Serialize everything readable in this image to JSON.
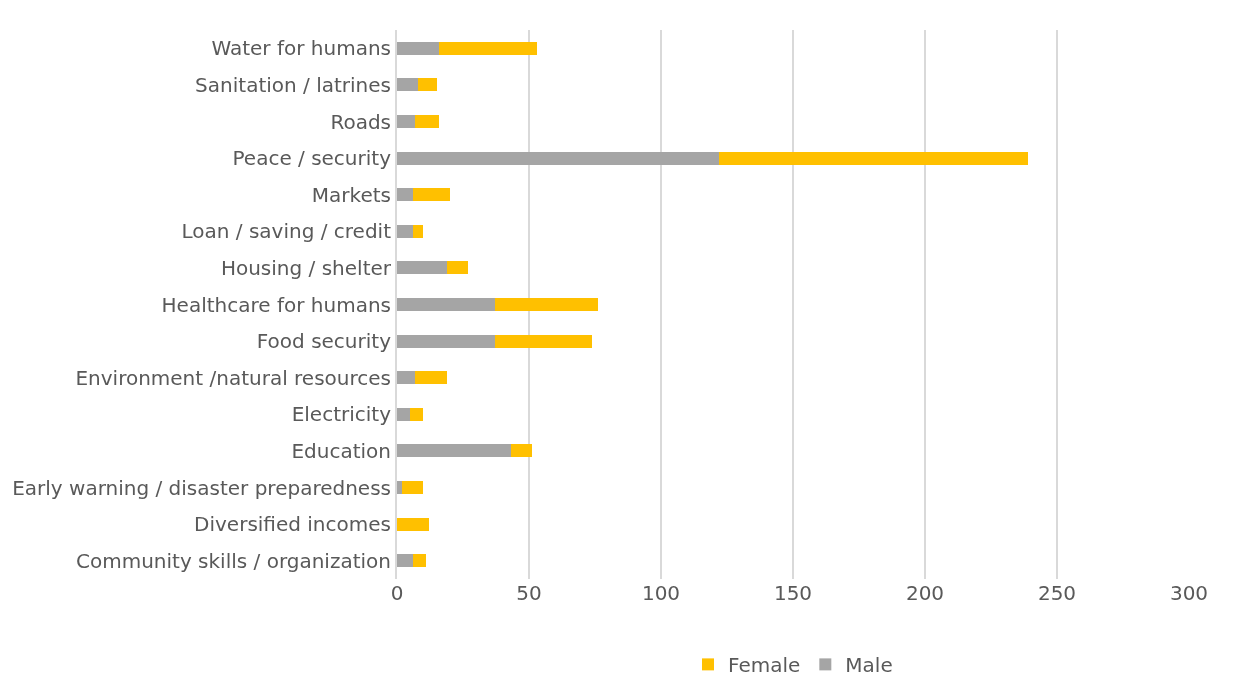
{
  "chart_data": {
    "type": "bar",
    "orientation": "horizontal",
    "stacked": true,
    "categories": [
      "Water for humans",
      "Sanitation / latrines",
      "Roads",
      "Peace / security",
      "Markets",
      "Loan / saving / credit",
      "Housing / shelter",
      "Healthcare for humans",
      "Food security",
      "Environment /natural resources",
      "Electricity",
      "Education",
      "Early warning / disaster preparedness",
      "Diversified incomes",
      "Community skills / organization"
    ],
    "series": [
      {
        "name": "Male",
        "color": "#a5a5a5",
        "values": [
          16,
          8,
          7,
          122,
          6,
          6,
          19,
          37,
          37,
          7,
          5,
          43,
          2,
          0,
          6
        ]
      },
      {
        "name": "Female",
        "color": "#ffc000",
        "values": [
          37,
          7,
          9,
          117,
          14,
          4,
          8,
          39,
          37,
          12,
          5,
          8,
          8,
          12,
          5
        ]
      }
    ],
    "xlim": [
      0,
      300
    ],
    "xticks": [
      0,
      50,
      100,
      150,
      200,
      250,
      300
    ],
    "grid": "x",
    "legend": "bottom"
  }
}
